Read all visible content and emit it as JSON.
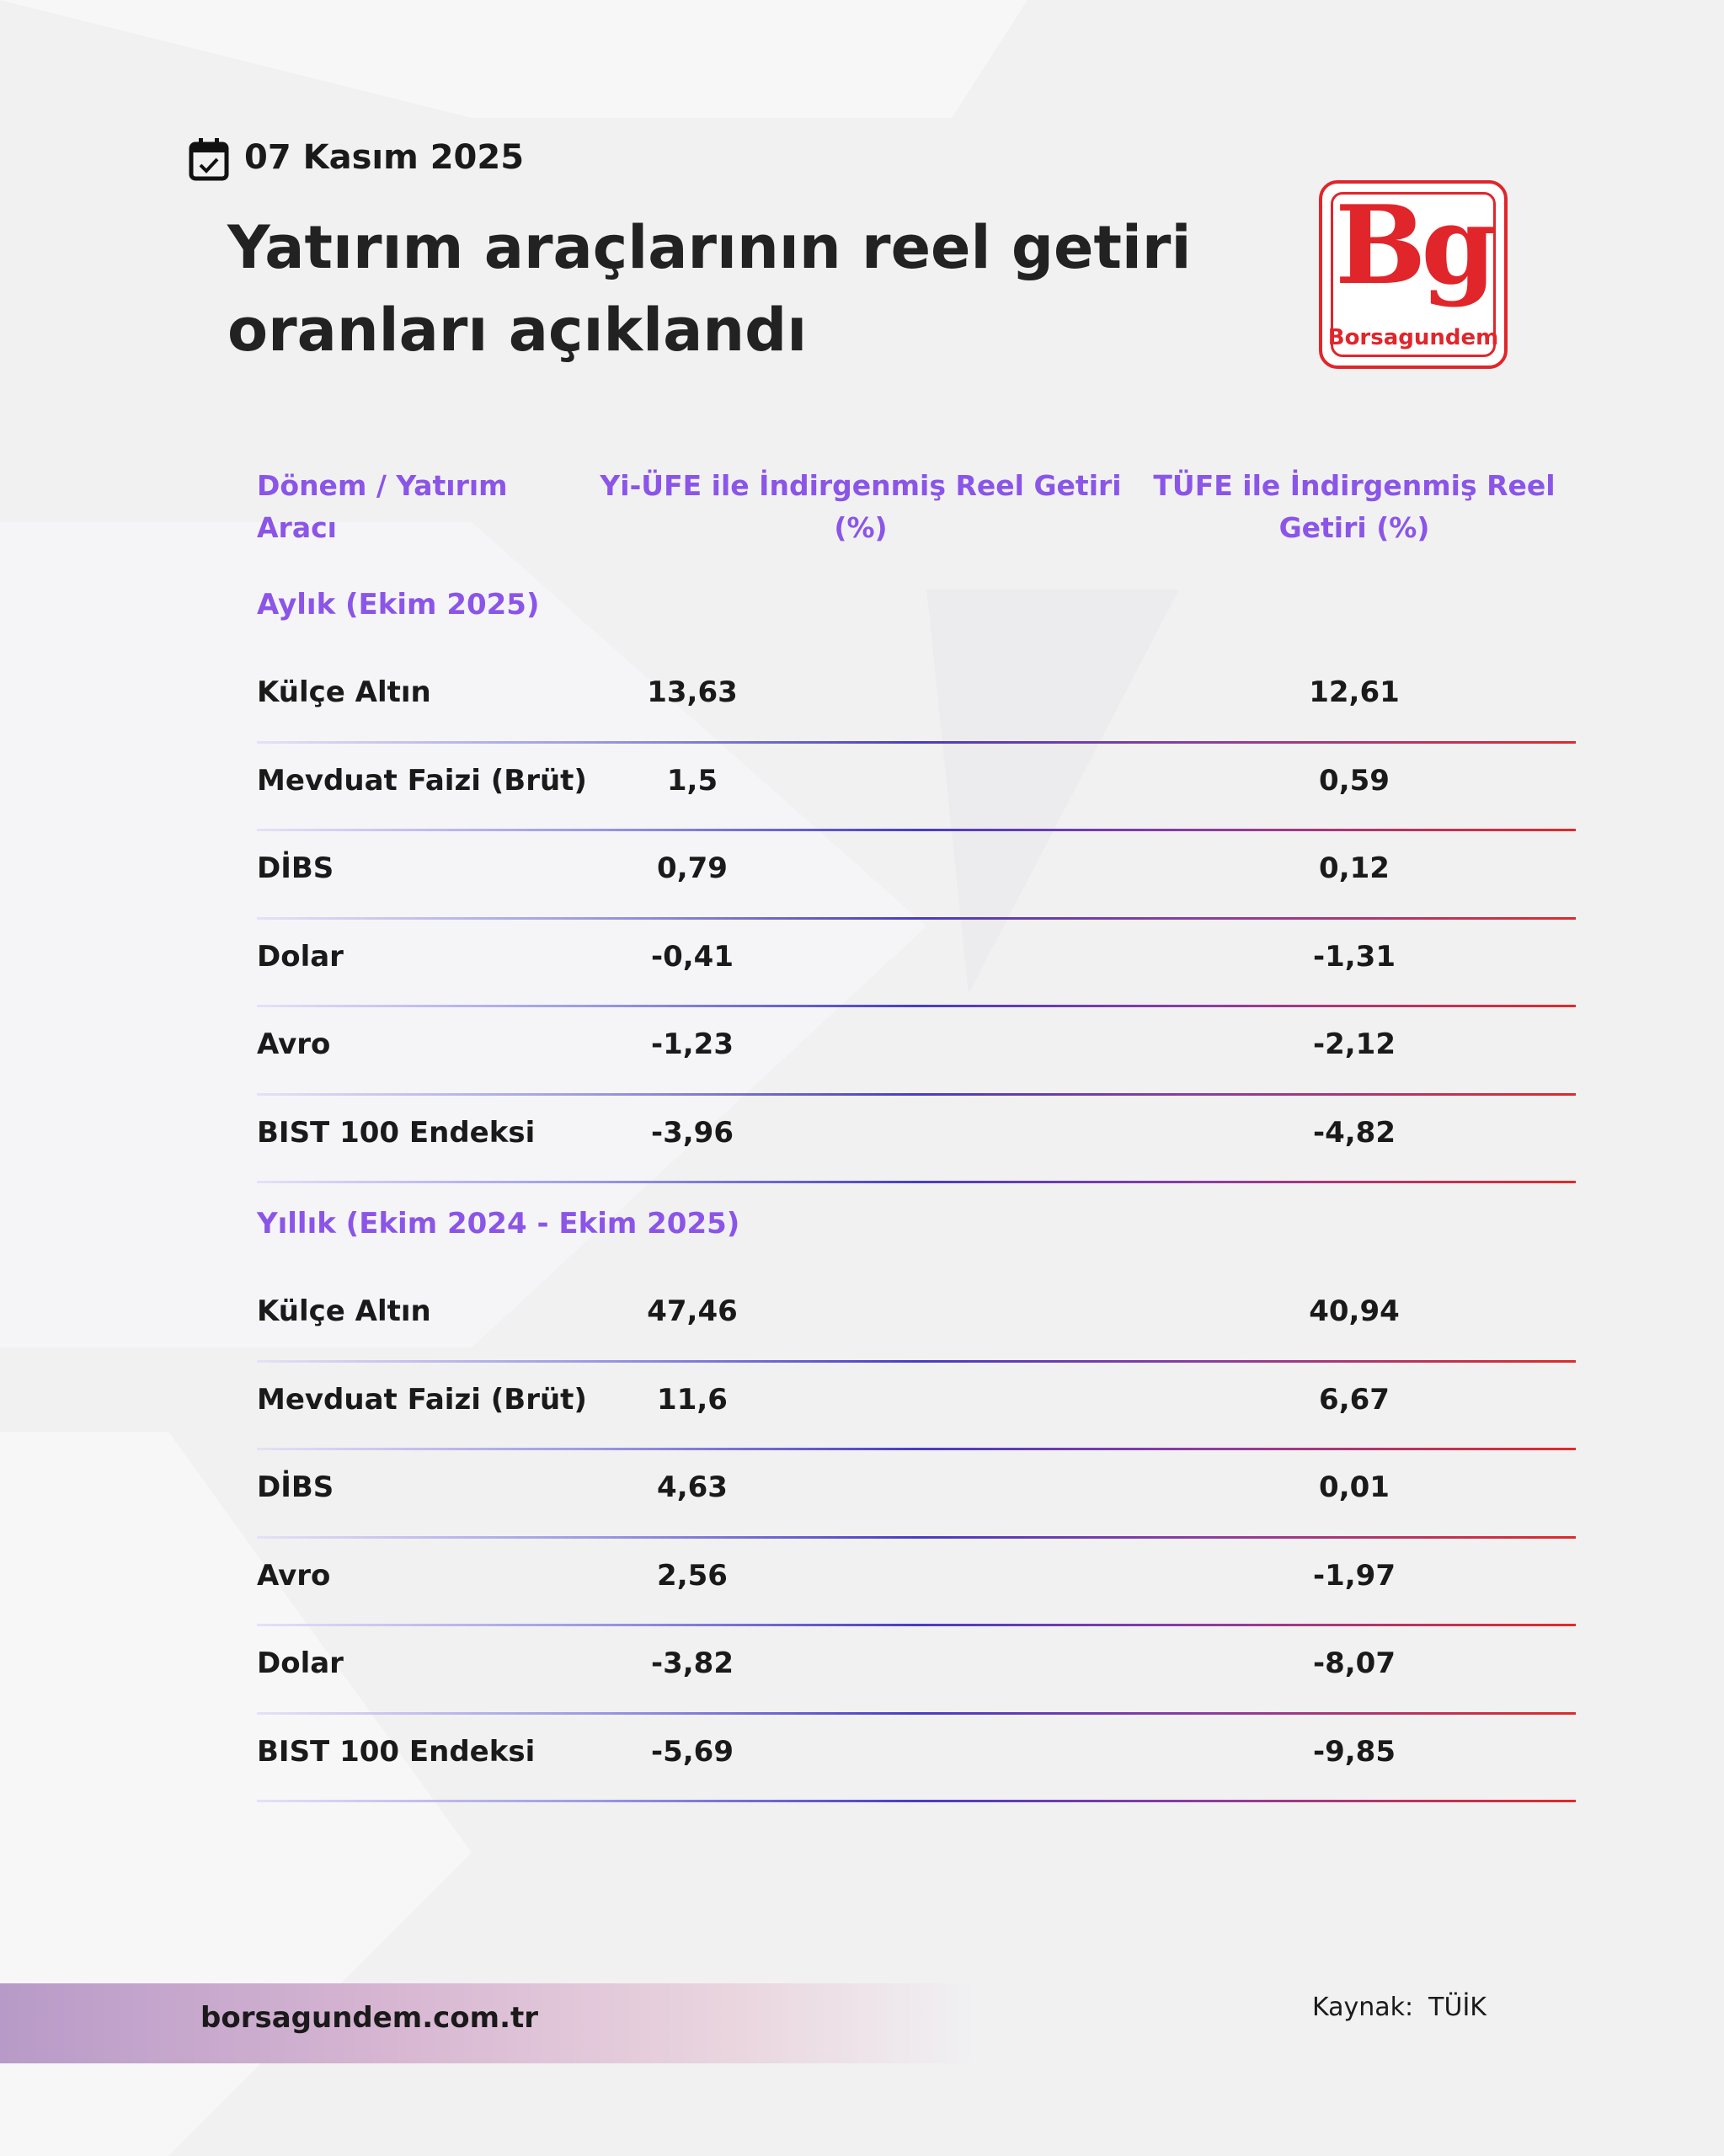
{
  "header": {
    "date": "07 Kasım 2025",
    "title_lines": [
      "Yatırım araçlarının reel getiri",
      "oranları açıklandı"
    ]
  },
  "logo": {
    "mark": "Bg",
    "name": "Borsagundem"
  },
  "table": {
    "columns": [
      "Dönem / Yatırım Aracı",
      "Yi-ÜFE ile İndirgenmiş Reel Getiri (%)",
      "TÜFE ile İndirgenmiş Reel Getiri (%)"
    ],
    "sections": [
      {
        "title": "Aylık (Ekim 2025)",
        "rows": [
          [
            "Külçe Altın",
            "13,63",
            "12,61"
          ],
          [
            "Mevduat Faizi (Brüt)",
            "1,5",
            "0,59"
          ],
          [
            "DİBS",
            "0,79",
            "0,12"
          ],
          [
            "Dolar",
            "-0,41",
            "-1,31"
          ],
          [
            "Avro",
            "-1,23",
            "-2,12"
          ],
          [
            "BIST 100 Endeksi",
            "-3,96",
            "-4,82"
          ]
        ]
      },
      {
        "title": "Yıllık (Ekim 2024 - Ekim 2025)",
        "rows": [
          [
            "Külçe Altın",
            "47,46",
            "40,94"
          ],
          [
            "Mevduat Faizi (Brüt)",
            "11,6",
            "6,67"
          ],
          [
            "DİBS",
            "4,63",
            "0,01"
          ],
          [
            "Avro",
            "2,56",
            "-1,97"
          ],
          [
            "Dolar",
            "-3,82",
            "-8,07"
          ],
          [
            "BIST 100 Endeksi",
            "-5,69",
            "-9,85"
          ]
        ]
      }
    ]
  },
  "footer": {
    "website": "borsagundem.com.tr",
    "source_label": "Kaynak:",
    "source": "TÜİK"
  }
}
